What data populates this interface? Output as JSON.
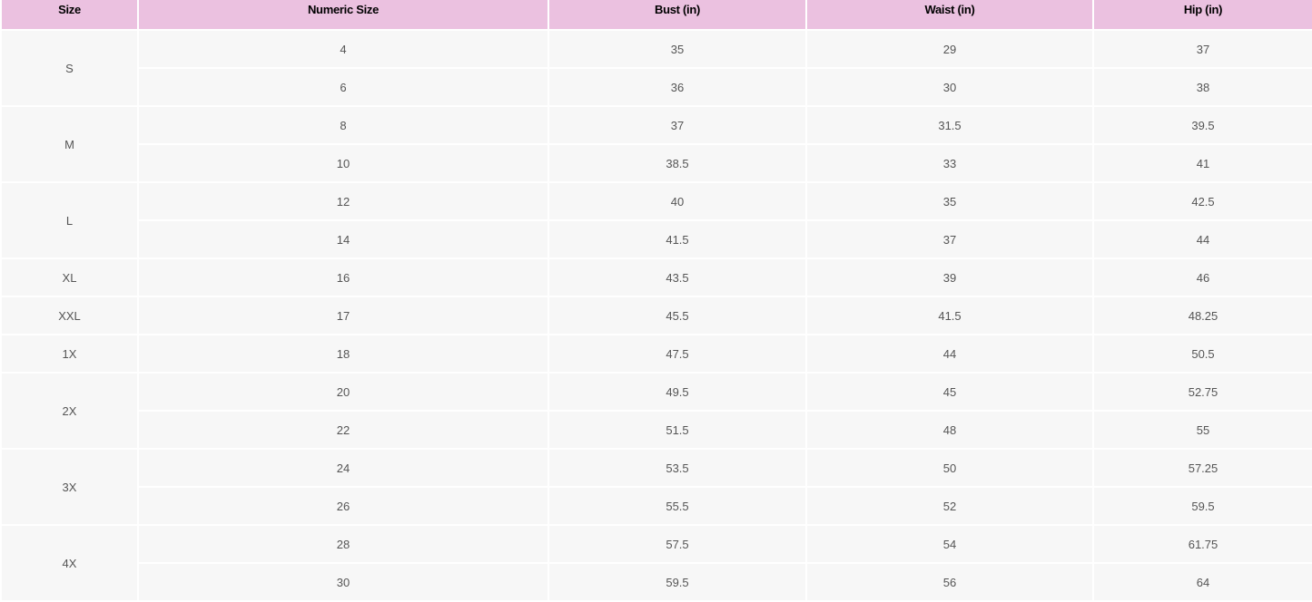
{
  "table": {
    "headers": [
      "Size",
      "Numeric Size",
      "Bust (in)",
      "Waist (in)",
      "Hip (in)"
    ],
    "groups": [
      {
        "size": "S",
        "rows": [
          [
            "4",
            "35",
            "29",
            "37"
          ],
          [
            "6",
            "36",
            "30",
            "38"
          ]
        ]
      },
      {
        "size": "M",
        "rows": [
          [
            "8",
            "37",
            "31.5",
            "39.5"
          ],
          [
            "10",
            "38.5",
            "33",
            "41"
          ]
        ]
      },
      {
        "size": "L",
        "rows": [
          [
            "12",
            "40",
            "35",
            "42.5"
          ],
          [
            "14",
            "41.5",
            "37",
            "44"
          ]
        ]
      },
      {
        "size": "XL",
        "rows": [
          [
            "16",
            "43.5",
            "39",
            "46"
          ]
        ]
      },
      {
        "size": "XXL",
        "rows": [
          [
            "17",
            "45.5",
            "41.5",
            "48.25"
          ]
        ]
      },
      {
        "size": "1X",
        "rows": [
          [
            "18",
            "47.5",
            "44",
            "50.5"
          ]
        ]
      },
      {
        "size": "2X",
        "rows": [
          [
            "20",
            "49.5",
            "45",
            "52.75"
          ],
          [
            "22",
            "51.5",
            "48",
            "55"
          ]
        ]
      },
      {
        "size": "3X",
        "rows": [
          [
            "24",
            "53.5",
            "50",
            "57.25"
          ],
          [
            "26",
            "55.5",
            "52",
            "59.5"
          ]
        ]
      },
      {
        "size": "4X",
        "rows": [
          [
            "28",
            "57.5",
            "54",
            "61.75"
          ],
          [
            "30",
            "59.5",
            "56",
            "64"
          ]
        ]
      }
    ]
  },
  "colors": {
    "header_bg": "#ebc1e0",
    "cell_bg": "#f7f7f7"
  }
}
